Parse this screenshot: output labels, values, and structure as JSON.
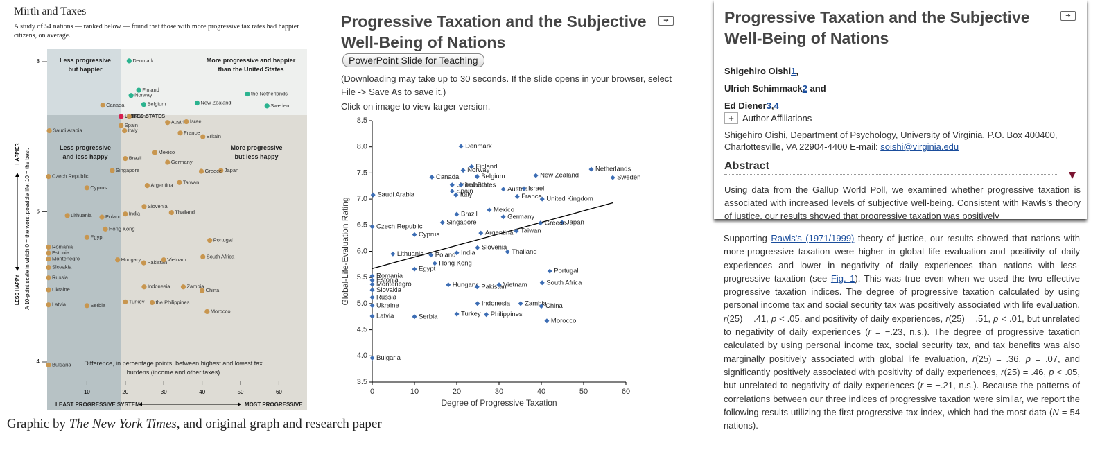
{
  "chart_data": [
    {
      "type": "scatter",
      "title": "Mirth and Taxes",
      "subtitle": "A study of 54 nations — ranked below — found that those with more progressive tax rates had happier citizens, on average.",
      "labels": [
        "Denmark",
        "Finland",
        "Norway",
        "Canada",
        "Belgium",
        "New Zealand",
        "the Netherlands",
        "Sweden",
        "UNITED STATES",
        "Ireland",
        "Austria",
        "Israel",
        "Spain",
        "France",
        "Britain",
        "Saudi Arabia",
        "Italy",
        "Mexico",
        "Brazil",
        "Germany",
        "Japan",
        "Greece",
        "Singapore",
        "Argentina",
        "Taiwan",
        "Czech Republic",
        "Cyprus",
        "Lithuania",
        "Poland",
        "India",
        "Slovenia",
        "Thailand",
        "Hong Kong",
        "Egypt",
        "Portugal",
        "Romania",
        "Estonia",
        "Montenegro",
        "Slovakia",
        "Hungary",
        "Pakistan",
        "Vietnam",
        "South Africa",
        "Russia",
        "Ukraine",
        "Indonesia",
        "Zambia",
        "China",
        "Latvia",
        "Serbia",
        "Turkey",
        "the Philippines",
        "Morocco",
        "Bulgaria"
      ],
      "x": [
        21,
        23.5,
        21.5,
        14.1,
        24.8,
        38.7,
        51.8,
        56.9,
        18.9,
        21,
        31,
        35.9,
        18.9,
        34.3,
        40.2,
        0.2,
        19.8,
        27.7,
        20,
        31,
        44.9,
        39.8,
        16.6,
        25.7,
        34.1,
        0,
        10,
        4.9,
        13.9,
        20,
        24.9,
        32,
        14.8,
        10,
        42,
        0,
        0,
        0,
        0,
        18,
        24.8,
        30,
        40.2,
        0,
        0,
        24.9,
        35.1,
        40,
        0,
        10,
        20,
        27,
        41.3,
        0
      ],
      "y": [
        8.01,
        7.62,
        7.55,
        7.42,
        7.43,
        7.45,
        7.57,
        7.41,
        7.27,
        7.27,
        7.19,
        7.2,
        7.15,
        7.05,
        7,
        7.08,
        7.08,
        6.79,
        6.71,
        6.66,
        6.55,
        6.54,
        6.55,
        6.35,
        6.39,
        6.47,
        6.32,
        5.95,
        5.93,
        5.97,
        6.07,
        5.99,
        5.77,
        5.66,
        5.62,
        5.53,
        5.45,
        5.37,
        5.26,
        5.36,
        5.32,
        5.36,
        5.4,
        5.12,
        4.96,
        5,
        5,
        4.95,
        4.76,
        4.75,
        4.8,
        4.79,
        4.67,
        3.96
      ],
      "colors": [
        "#2bb38f",
        "#2bb38f",
        "#2bb38f",
        "#c8964f",
        "#2bb38f",
        "#2bb38f",
        "#2bb38f",
        "#2bb38f",
        "#d6204f",
        "#c8964f",
        "#c8964f",
        "#c8964f",
        "#c8964f",
        "#c8964f",
        "#c8964f",
        "#c8964f",
        "#c8964f",
        "#c8964f",
        "#c8964f",
        "#c8964f",
        "#c8964f",
        "#c8964f",
        "#c8964f",
        "#c8964f",
        "#c8964f",
        "#c8964f",
        "#c8964f",
        "#c8964f",
        "#c8964f",
        "#c8964f",
        "#c8964f",
        "#c8964f",
        "#c8964f",
        "#c8964f",
        "#c8964f",
        "#c8964f",
        "#c8964f",
        "#c8964f",
        "#c8964f",
        "#c8964f",
        "#c8964f",
        "#c8964f",
        "#c8964f",
        "#c8964f",
        "#c8964f",
        "#c8964f",
        "#c8964f",
        "#c8964f",
        "#c8964f",
        "#c8964f",
        "#c8964f",
        "#c8964f",
        "#c8964f",
        "#c8964f"
      ],
      "quadrant_colors": [
        "#d3dcdf",
        "#eef0ee",
        "#b7c2c5",
        "#dedcd5"
      ],
      "xlim": [
        0,
        67
      ],
      "ylim": [
        3.55,
        8.18
      ],
      "xticks": [
        10,
        20,
        30,
        40,
        50,
        60
      ],
      "yticks": [
        4,
        6,
        8
      ],
      "annotations": [
        "Less progressive but happier",
        "More progressive and happier than the United States",
        "Less progressive and less happy",
        "More progressive but less happy",
        "Difference, in percentage points, between highest and lowest tax burdens (income and other taxes)"
      ],
      "xlabel_left": "LEAST PROGRESSIVE SYSTEM",
      "xlabel_right": "MOST PROGRESSIVE",
      "ylabel_top": "HAPPIER",
      "ylabel_bottom": "LESS HAPPY",
      "ylabel": "A 10-point scale in which 0 = the worst possible life; 10 = the best."
    },
    {
      "type": "scatter",
      "xlabel": "Degree of Progressive Taxation",
      "ylabel": "Global-Life-Evaluation Rating",
      "color": "#3c6db4",
      "line_color": "#000000",
      "labels": [
        "Denmark",
        "Finland",
        "Norway",
        "Canada",
        "Belgium",
        "New Zealand",
        "Netherlands",
        "Sweden",
        "United States",
        "Ireland",
        "Austria",
        "Israel",
        "Spain",
        "France",
        "United Kingdom",
        "Saudi Arabia",
        "Italy",
        "Mexico",
        "Brazil",
        "Germany",
        "Japan",
        "Greece",
        "Singapore",
        "Argentina",
        "Taiwan",
        "Czech Republic",
        "Cyprus",
        "Lithuania",
        "Poland",
        "India",
        "Slovenia",
        "Thailand",
        "Hong Kong",
        "Egypt",
        "Portugal",
        "Romania",
        "Estonia",
        "Montenegro",
        "Slovakia",
        "Hungary",
        "Pakistan",
        "Vietnam",
        "South Africa",
        "Russia",
        "Ukraine",
        "Indonesia",
        "Zambia",
        "China",
        "Latvia",
        "Serbia",
        "Turkey",
        "Philippines",
        "Morocco",
        "Bulgaria"
      ],
      "x": [
        21,
        23.5,
        21.5,
        14.1,
        24.8,
        38.7,
        51.8,
        56.9,
        18.9,
        21,
        31,
        35.9,
        18.9,
        34.3,
        40.2,
        0.2,
        19.8,
        27.7,
        20,
        31,
        44.9,
        39.8,
        16.6,
        25.7,
        34.1,
        0,
        10,
        4.9,
        13.9,
        20,
        24.9,
        32,
        14.8,
        10,
        42,
        0,
        0,
        0,
        0,
        18,
        24.8,
        30,
        40.2,
        0,
        0,
        24.9,
        35.1,
        40,
        0,
        10,
        20,
        27,
        41.3,
        0
      ],
      "y": [
        8.01,
        7.62,
        7.55,
        7.42,
        7.43,
        7.45,
        7.57,
        7.41,
        7.27,
        7.27,
        7.19,
        7.2,
        7.15,
        7.05,
        7,
        7.08,
        7.08,
        6.79,
        6.71,
        6.66,
        6.55,
        6.54,
        6.55,
        6.35,
        6.39,
        6.47,
        6.32,
        5.95,
        5.93,
        5.97,
        6.07,
        5.99,
        5.77,
        5.66,
        5.62,
        5.53,
        5.45,
        5.37,
        5.26,
        5.36,
        5.32,
        5.36,
        5.4,
        5.12,
        4.96,
        5,
        5,
        4.95,
        4.76,
        4.75,
        4.8,
        4.79,
        4.67,
        3.96
      ],
      "trendline": {
        "x": [
          0,
          57
        ],
        "y": [
          5.67,
          6.93
        ]
      },
      "xlim": [
        0,
        60
      ],
      "ylim": [
        3.5,
        8.5
      ],
      "xticks": [
        0,
        10,
        20,
        30,
        40,
        50,
        60
      ],
      "yticks": [
        3.5,
        {
          "value": 4,
          "label": "4.0"
        },
        4.5,
        {
          "value": 5,
          "label": "5.0"
        },
        5.5,
        {
          "value": 6,
          "label": "6.0"
        },
        6.5,
        {
          "value": 7,
          "label": "7.0"
        },
        7.5,
        {
          "value": 8,
          "label": "8.0"
        },
        8.5
      ]
    }
  ],
  "middle_panel": {
    "title": "Progressive Taxation and the Subjective Well-Being of Nations",
    "button": "PowerPoint Slide for Teaching",
    "note": "(Downloading may take up to 30 seconds. If the slide opens in your browser, select File -> Save As to save it.)",
    "hint": "Click on image to view larger version."
  },
  "article": {
    "title": "Progressive Taxation and the Subjective Well-Being of Nations",
    "authors": [
      [
        {
          "text": "Shigehiro Oishi"
        },
        {
          "text": "1",
          "style": "link"
        },
        {
          "text": ","
        }
      ],
      [
        {
          "text": "Ulrich Schimmack"
        },
        {
          "text": "2",
          "style": "link"
        },
        {
          "text": " and"
        }
      ],
      [
        {
          "text": "Ed Diener"
        },
        {
          "text": "3",
          "style": "link"
        },
        {
          "text": ","
        },
        {
          "text": "4",
          "style": "link"
        }
      ]
    ],
    "toggle": "+",
    "affiliations_heading": "Author Affiliations",
    "affiliation": [
      {
        "text": "Shigehiro Oishi, Department of Psychology, University of Virginia, P.O. Box 400400, Charlottesville, VA 22904-4400 E-mail: "
      },
      {
        "text": "soishi@virginia.edu",
        "style": "link"
      }
    ],
    "abstract_heading": "Abstract",
    "abstract": "Using data from the Gallup World Poll, we examined whether progressive taxation is associated with increased levels of subjective well-being. Consistent with Rawls's theory of justice, our results showed that progressive taxation was positively",
    "body": [
      {
        "text": "Supporting "
      },
      {
        "text": "Rawls's (1971/1999)",
        "style": "link"
      },
      {
        "text": " theory of justice, our results showed that nations with more-progressive taxation were higher in global life evaluation and positivity of daily experiences and lower in negativity of daily experiences than nations with less-progressive taxation (see "
      },
      {
        "text": "Fig. 1",
        "style": "link"
      },
      {
        "text": "). This was true even when we used the two effective progressive taxation indices. The degree of progressive taxation calculated by using personal income tax and social security tax was positively associated with life evaluation, "
      },
      {
        "text": "r",
        "style": "italic"
      },
      {
        "text": "(25) = .41, "
      },
      {
        "text": "p",
        "style": "italic"
      },
      {
        "text": " < .05, and positivity of daily experiences, "
      },
      {
        "text": "r",
        "style": "italic"
      },
      {
        "text": "(25) = .51, "
      },
      {
        "text": "p",
        "style": "italic"
      },
      {
        "text": " < .01, but unrelated to negativity of daily experiences ("
      },
      {
        "text": "r",
        "style": "italic"
      },
      {
        "text": " = −.23, n.s.). The degree of progressive taxation calculated by using personal income tax, social security tax, and tax benefits was also marginally positively associated with global life evaluation, "
      },
      {
        "text": "r",
        "style": "italic"
      },
      {
        "text": "(25) = .36, "
      },
      {
        "text": "p",
        "style": "italic"
      },
      {
        "text": " = .07, and significantly positively associated with positivity of daily experiences, "
      },
      {
        "text": "r",
        "style": "italic"
      },
      {
        "text": "(25) = .46, "
      },
      {
        "text": "p",
        "style": "italic"
      },
      {
        "text": " < .05, but unrelated to negativity of daily experiences ("
      },
      {
        "text": "r",
        "style": "italic"
      },
      {
        "text": " = −.21, n.s.). Because the patterns of correlations between our three indices of progressive taxation were similar, we report the following results utilizing the first progressive tax index, which had the most data ("
      },
      {
        "text": "N",
        "style": "italic"
      },
      {
        "text": " = 54 nations)."
      }
    ]
  },
  "caption": [
    {
      "text": "Graphic by "
    },
    {
      "text": "The New York Times",
      "style": "italic"
    },
    {
      "text": ", and original graph and research paper"
    }
  ]
}
